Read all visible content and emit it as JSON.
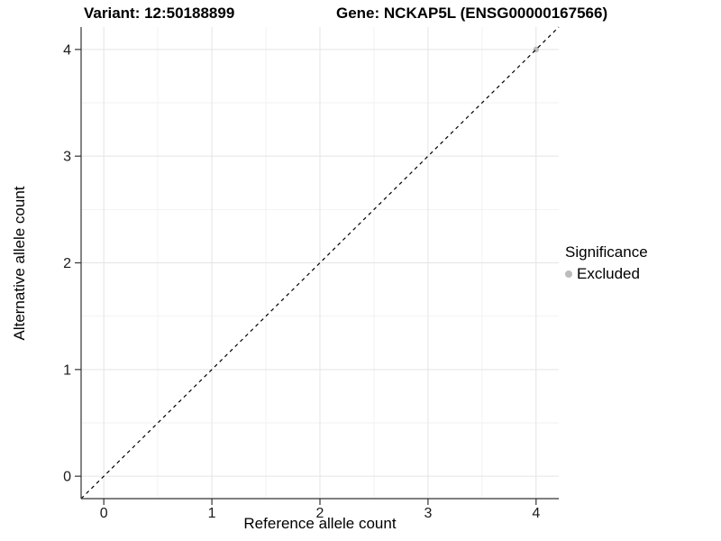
{
  "titles": {
    "variant": "Variant: 12:50188899",
    "gene": "Gene: NCKAP5L (ENSG00000167566)"
  },
  "legend": {
    "title": "Significance",
    "items": [
      {
        "label": "Excluded",
        "color": "#bcbcbc",
        "marker": "circle-icon"
      }
    ]
  },
  "colors": {
    "background": "#ffffff",
    "grid_major": "#e4e4e4",
    "grid_minor": "#f2f2f2",
    "axis_line": "#333333",
    "tick_mark": "#333333",
    "tick_text": "#1a1a1a",
    "identity_line": "#000000",
    "point": "#bcbcbc"
  },
  "chart_data": {
    "type": "scatter",
    "title": "Variant: 12:50188899  /  Gene: NCKAP5L (ENSG00000167566)",
    "xlabel": "Reference allele count",
    "ylabel": "Alternative allele count",
    "xlim": [
      -0.21,
      4.21
    ],
    "ylim": [
      -0.21,
      4.21
    ],
    "xticks": [
      0,
      1,
      2,
      3,
      4
    ],
    "yticks": [
      0,
      1,
      2,
      3,
      4
    ],
    "minor_xticks": [
      0.5,
      1.5,
      2.5,
      3.5
    ],
    "minor_yticks": [
      0.5,
      1.5,
      2.5,
      3.5
    ],
    "grid": "major+minor",
    "legend_position": "right",
    "identity_line": {
      "style": "dashed",
      "equation": "y = x"
    },
    "series": [
      {
        "name": "Excluded",
        "color": "#bcbcbc",
        "points": [
          {
            "x": 4,
            "y": 4
          }
        ]
      }
    ]
  }
}
